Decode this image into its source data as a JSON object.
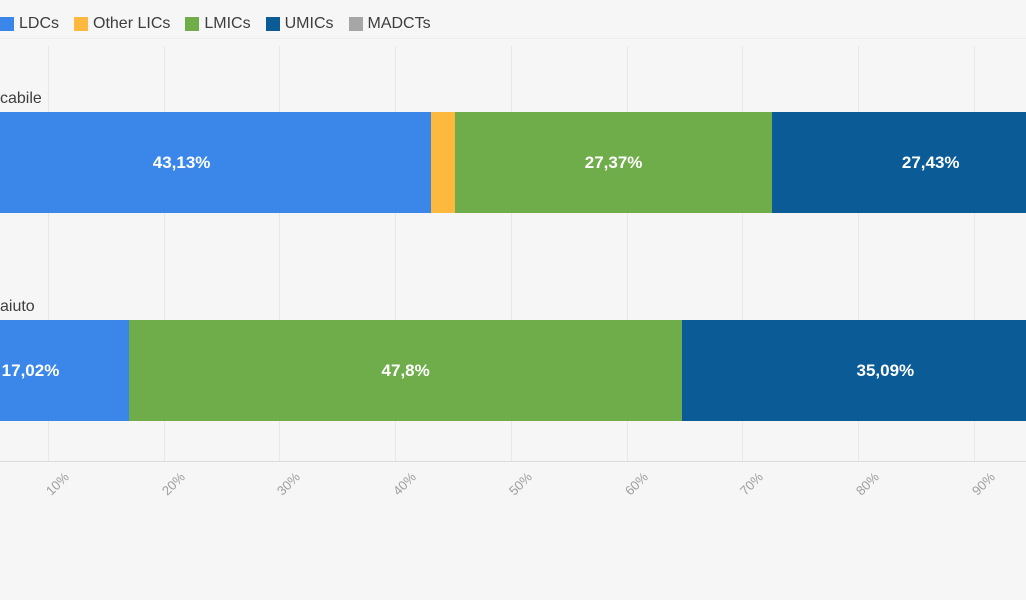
{
  "colors": {
    "background": "#f6f6f6",
    "gridline": "#e8e8e8",
    "axis_line": "#dadada",
    "legend_text": "#3d3d3d",
    "axis_text": "#9e9e9e",
    "bar_value_text": "#ffffff"
  },
  "legend": {
    "items": [
      {
        "label": "LDCs",
        "color": "#3a87e9"
      },
      {
        "label": "Other LICs",
        "color": "#fdb93e"
      },
      {
        "label": "LMICs",
        "color": "#6fad4b"
      },
      {
        "label": "UMICs",
        "color": "#0a5b96"
      },
      {
        "label": "MADCTs",
        "color": "#a6a6a6"
      }
    ]
  },
  "chart_data": {
    "type": "bar",
    "orientation": "horizontal-stacked",
    "title": "",
    "xlabel": "",
    "ylabel": "",
    "xlim": [
      0,
      100
    ],
    "grid": true,
    "legend_position": "top",
    "categories": [
      "cabile",
      "aiuto"
    ],
    "x_ticks": [
      "10%",
      "20%",
      "30%",
      "40%",
      "50%",
      "60%",
      "70%",
      "80%",
      "90%"
    ],
    "series": [
      {
        "name": "LDCs",
        "color": "#3a87e9",
        "values": [
          43.13,
          17.02
        ],
        "labels": [
          "43,13%",
          "17,02%"
        ]
      },
      {
        "name": "Other LICs",
        "color": "#fdb93e",
        "values": [
          2.07,
          0
        ],
        "labels": [
          "",
          ""
        ]
      },
      {
        "name": "LMICs",
        "color": "#6fad4b",
        "values": [
          27.37,
          47.8
        ],
        "labels": [
          "27,37%",
          "47,8%"
        ]
      },
      {
        "name": "UMICs",
        "color": "#0a5b96",
        "values": [
          27.43,
          35.09
        ],
        "labels": [
          "27,43%",
          "35,09%"
        ]
      },
      {
        "name": "MADCTs",
        "color": "#a6a6a6",
        "values": [
          0,
          0
        ],
        "labels": [
          "",
          ""
        ]
      }
    ]
  }
}
